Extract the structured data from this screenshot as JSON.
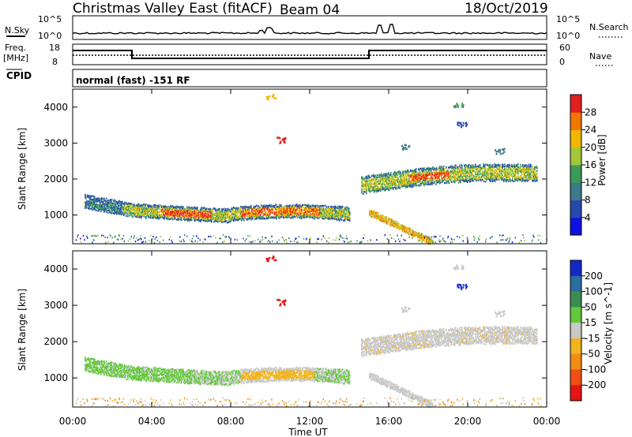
{
  "header": {
    "title": "Christmas Valley East (fitACF)",
    "beam": "Beam 04",
    "date": "18/Oct/2019"
  },
  "strips": {
    "nsky_label": "N.Sky",
    "nsearch_label": "N.Search",
    "nsky_ticks": [
      "10^5",
      "10^0"
    ],
    "nsearch_ticks": [
      "10^5",
      "10^0"
    ],
    "freq_label": "Freq.",
    "freq_unit": "[MHz]",
    "freq_ticks": [
      "18",
      "8"
    ],
    "nave_label": "Nave",
    "nave_ticks": [
      "60",
      "0"
    ],
    "cpid_label": "CPID",
    "cpid_text": "normal (fast) -151 RF"
  },
  "chart_data": [
    {
      "type": "heatmap",
      "name": "power",
      "ylabel": "Slant Range [km]",
      "colorbar_label": "Power [dB]",
      "ylim": [
        200,
        4500
      ],
      "xlim": [
        0,
        24
      ],
      "y_ticks": [
        1000,
        2000,
        3000,
        4000
      ],
      "colorbar_ticks": [
        "4",
        "8",
        "12",
        "16",
        "20",
        "24",
        "28"
      ],
      "colorbar_colors": [
        "#1010e0",
        "#2848b0",
        "#3a7a8a",
        "#3c9a58",
        "#a0c838",
        "#f0b800",
        "#f07800",
        "#e02020"
      ],
      "colorbar_range": [
        0,
        30
      ]
    },
    {
      "type": "heatmap",
      "name": "velocity",
      "ylabel": "Slant Range [km]",
      "xlabel": "Time UT",
      "colorbar_label": "Velocity [m s^-1]",
      "ylim": [
        200,
        4500
      ],
      "xlim": [
        0,
        24
      ],
      "y_ticks": [
        1000,
        2000,
        3000,
        4000
      ],
      "x_tick_labels": [
        "00:00",
        "04:00",
        "08:00",
        "12:00",
        "16:00",
        "20:00",
        "00:00"
      ],
      "colorbar_ticks": [
        "200",
        "100",
        "50",
        "15",
        "-15",
        "-50",
        "-100",
        "-200"
      ],
      "colorbar_colors": [
        "#1428c8",
        "#286ea0",
        "#3c8c50",
        "#64c83c",
        "#c8c8c8",
        "#f0b41e",
        "#f08c14",
        "#f05014",
        "#e61414"
      ]
    }
  ]
}
